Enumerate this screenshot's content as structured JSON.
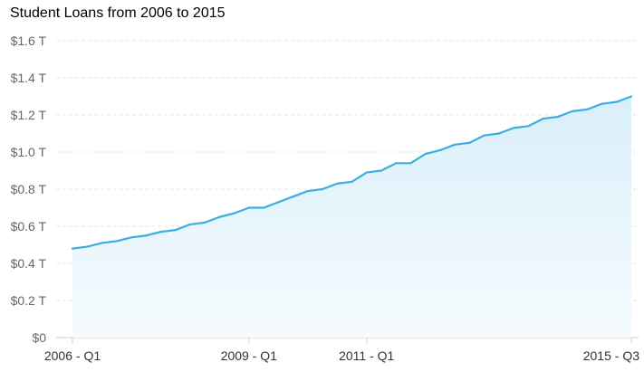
{
  "chart_data": {
    "type": "area",
    "title": "Student Loans from 2006 to 2015",
    "xlabel": "",
    "ylabel": "",
    "x_start_label": "2006 - Q1",
    "x_tick_labels": [
      "2006 - Q1",
      "2009 - Q1",
      "2011 - Q1",
      "2015 - Q3"
    ],
    "x_tick_indices": [
      0,
      12,
      20,
      38
    ],
    "y_tick_labels": [
      "$0",
      "$0.2 T",
      "$0.4 T",
      "$0.6 T",
      "$0.8 T",
      "$1.0 T",
      "$1.2 T",
      "$1.4 T",
      "$1.6 T"
    ],
    "y_tick_values": [
      0,
      0.2,
      0.4,
      0.6,
      0.8,
      1.0,
      1.2,
      1.4,
      1.6
    ],
    "ylim": [
      0,
      1.6
    ],
    "unit": "trillions of dollars",
    "grid": true,
    "legend": "none",
    "colors": {
      "line": "#3aaee0",
      "fill_top": "#d9eff9",
      "fill_bottom": "#f5fbfe",
      "grid": "#e4e4e4"
    },
    "series": [
      {
        "values": [
          0.48,
          0.49,
          0.51,
          0.52,
          0.54,
          0.55,
          0.57,
          0.58,
          0.61,
          0.62,
          0.65,
          0.67,
          0.7,
          0.7,
          0.73,
          0.76,
          0.79,
          0.8,
          0.83,
          0.84,
          0.89,
          0.9,
          0.94,
          0.94,
          0.99,
          1.01,
          1.04,
          1.05,
          1.09,
          1.1,
          1.13,
          1.14,
          1.18,
          1.19,
          1.22,
          1.23,
          1.26,
          1.27,
          1.3
        ]
      }
    ]
  }
}
